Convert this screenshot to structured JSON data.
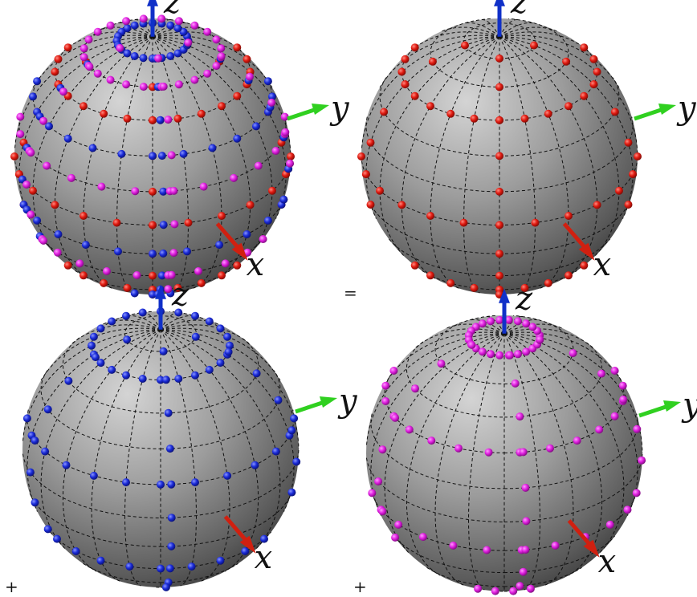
{
  "operators": {
    "plus": "+",
    "equals": "="
  },
  "colors": {
    "red": "#e01a10",
    "blue": "#1a2bd8",
    "magenta": "#e020e0",
    "axis_x": "#d02010",
    "axis_y": "#30d020",
    "axis_z": "#1030c8",
    "sphere_light": "#cfcfcf",
    "sphere_dark": "#3a3a3a"
  },
  "panels": [
    {
      "id": "combined",
      "label_x": "x",
      "label_y": "y",
      "label_z": "z",
      "dot_sets": [
        "red",
        "blue",
        "magenta"
      ]
    },
    {
      "id": "red-set",
      "label_x": "x",
      "label_y": "y",
      "label_z": "z",
      "dot_sets": [
        "red"
      ]
    },
    {
      "id": "blue-set",
      "label_x": "x",
      "label_y": "y",
      "label_z": "z",
      "dot_sets": [
        "blue"
      ]
    },
    {
      "id": "magenta-set",
      "label_x": "x",
      "label_y": "y",
      "label_z": "z",
      "dot_sets": [
        "magenta"
      ]
    }
  ]
}
